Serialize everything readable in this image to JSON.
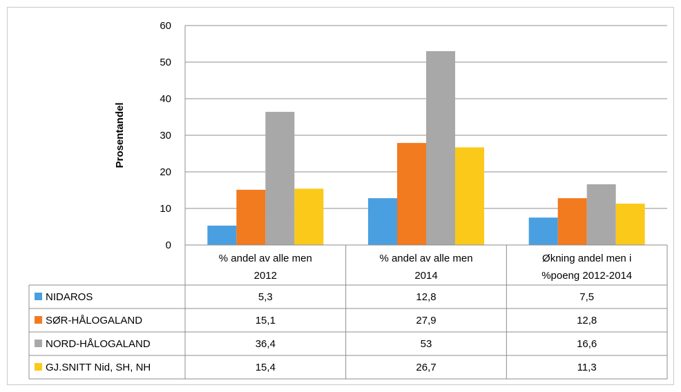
{
  "chart_data": {
    "type": "bar",
    "ylabel": "Prosentandel",
    "ylim": [
      0,
      60
    ],
    "yticks": [
      0,
      10,
      20,
      30,
      40,
      50,
      60
    ],
    "grid": true,
    "categories": [
      [
        "% andel av alle men",
        "2012"
      ],
      [
        "% andel av alle men",
        "2014"
      ],
      [
        "Økning andel men i",
        "%poeng 2012-2014"
      ]
    ],
    "series": [
      {
        "name": "NIDAROS",
        "color": "#4a9fe0",
        "values": [
          5.3,
          12.8,
          7.5
        ],
        "labels": [
          "5,3",
          "12,8",
          "7,5"
        ]
      },
      {
        "name": "SØR-HÅLOGALAND",
        "color": "#f27a1f",
        "values": [
          15.1,
          27.9,
          12.8
        ],
        "labels": [
          "15,1",
          "27,9",
          "12,8"
        ]
      },
      {
        "name": "NORD-HÅLOGALAND",
        "color": "#a8a8a8",
        "values": [
          36.4,
          53,
          16.6
        ],
        "labels": [
          "36,4",
          "53",
          "16,6"
        ]
      },
      {
        "name": "GJ.SNITT Nid, SH, NH",
        "color": "#fbc91a",
        "values": [
          15.4,
          26.7,
          11.3
        ],
        "labels": [
          "15,4",
          "26,7",
          "11,3"
        ]
      }
    ]
  }
}
